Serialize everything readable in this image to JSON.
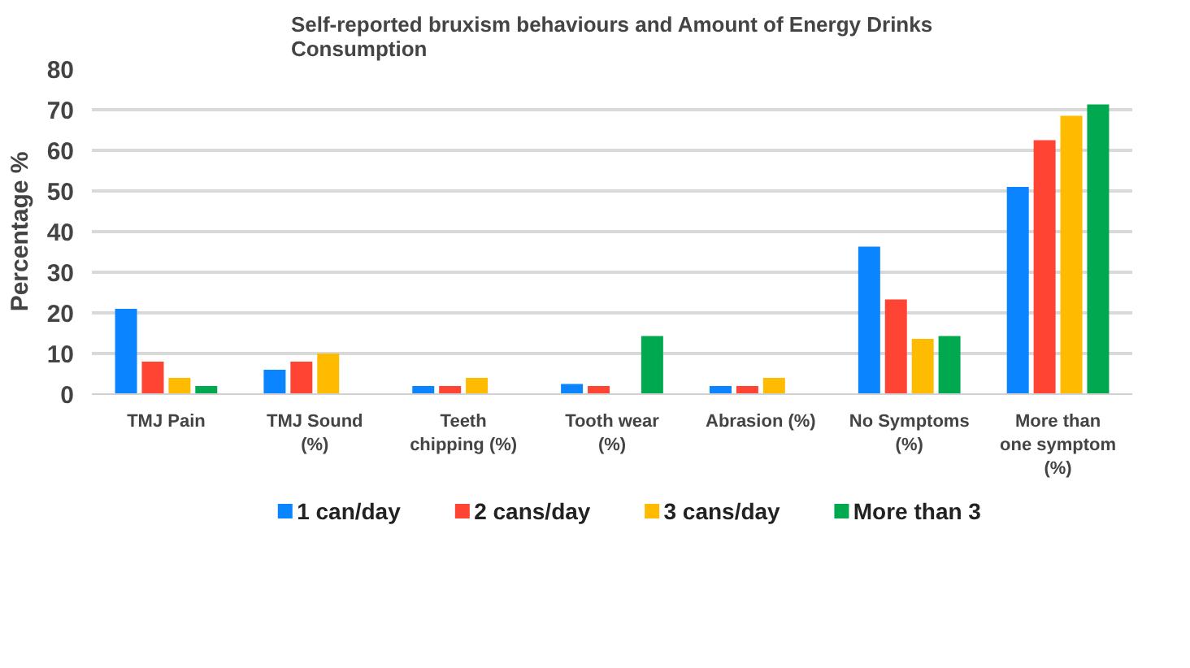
{
  "chart_data": {
    "type": "bar",
    "title": "Self-reported bruxism behaviours and Amount of Energy Drinks Consumption",
    "ylabel": "Percentage %",
    "categories": [
      "TMJ Pain",
      "TMJ Sound (%)",
      "Teeth chipping (%)",
      "Tooth wear (%)",
      "Abrasion (%)",
      "No Symptoms (%)",
      "More than one symptom (%)"
    ],
    "series": [
      {
        "name": "1 can/day",
        "color": "#0a84ff",
        "values": [
          21,
          6,
          2,
          2.5,
          2,
          36.3,
          51
        ]
      },
      {
        "name": "2 cans/day",
        "color": "#ff4433",
        "values": [
          8,
          8,
          2,
          2,
          2,
          23.3,
          62.5
        ]
      },
      {
        "name": "3 cans/day",
        "color": "#ffbb00",
        "values": [
          4,
          10,
          4,
          0,
          4,
          13.6,
          68.5
        ]
      },
      {
        "name": "More than 3",
        "color": "#00a84f",
        "values": [
          2,
          0,
          0,
          14.3,
          0,
          14.3,
          71.3
        ]
      }
    ],
    "ylim": [
      0,
      80
    ],
    "yticks": [
      0,
      10,
      20,
      30,
      40,
      50,
      60,
      70,
      80
    ],
    "grid": "y",
    "legend": "bottom"
  }
}
